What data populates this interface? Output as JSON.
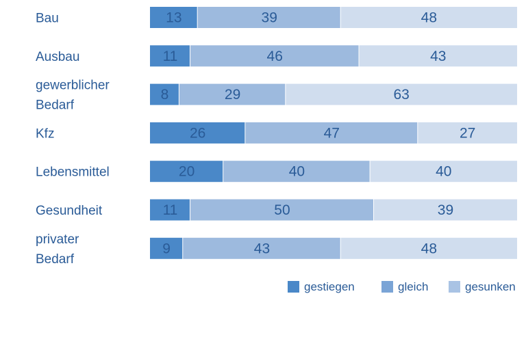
{
  "chart_data": {
    "type": "bar",
    "orientation": "horizontal",
    "stacked": true,
    "percent": true,
    "xlim": [
      0,
      100
    ],
    "categories": [
      [
        "Bau"
      ],
      [
        "Ausbau"
      ],
      [
        "gewerblicher",
        "Bedarf"
      ],
      [
        "Kfz"
      ],
      [
        "Lebensmittel"
      ],
      [
        "Gesundheit"
      ],
      [
        "privater",
        "Bedarf"
      ]
    ],
    "series": [
      {
        "name": "gestiegen",
        "color": "#4a88c8",
        "values": [
          13,
          11,
          8,
          26,
          20,
          11,
          9
        ]
      },
      {
        "name": "gleich",
        "color": "#9dbade",
        "values": [
          39,
          46,
          29,
          47,
          40,
          50,
          43
        ]
      },
      {
        "name": "gesunken",
        "color": "#d0ddee",
        "values": [
          48,
          43,
          63,
          27,
          40,
          39,
          48
        ]
      }
    ],
    "legend_position": "bottom-right",
    "legend_colors": [
      "#4a88c8",
      "#7aa4d6",
      "#a9c3e4"
    ],
    "grid": false
  }
}
